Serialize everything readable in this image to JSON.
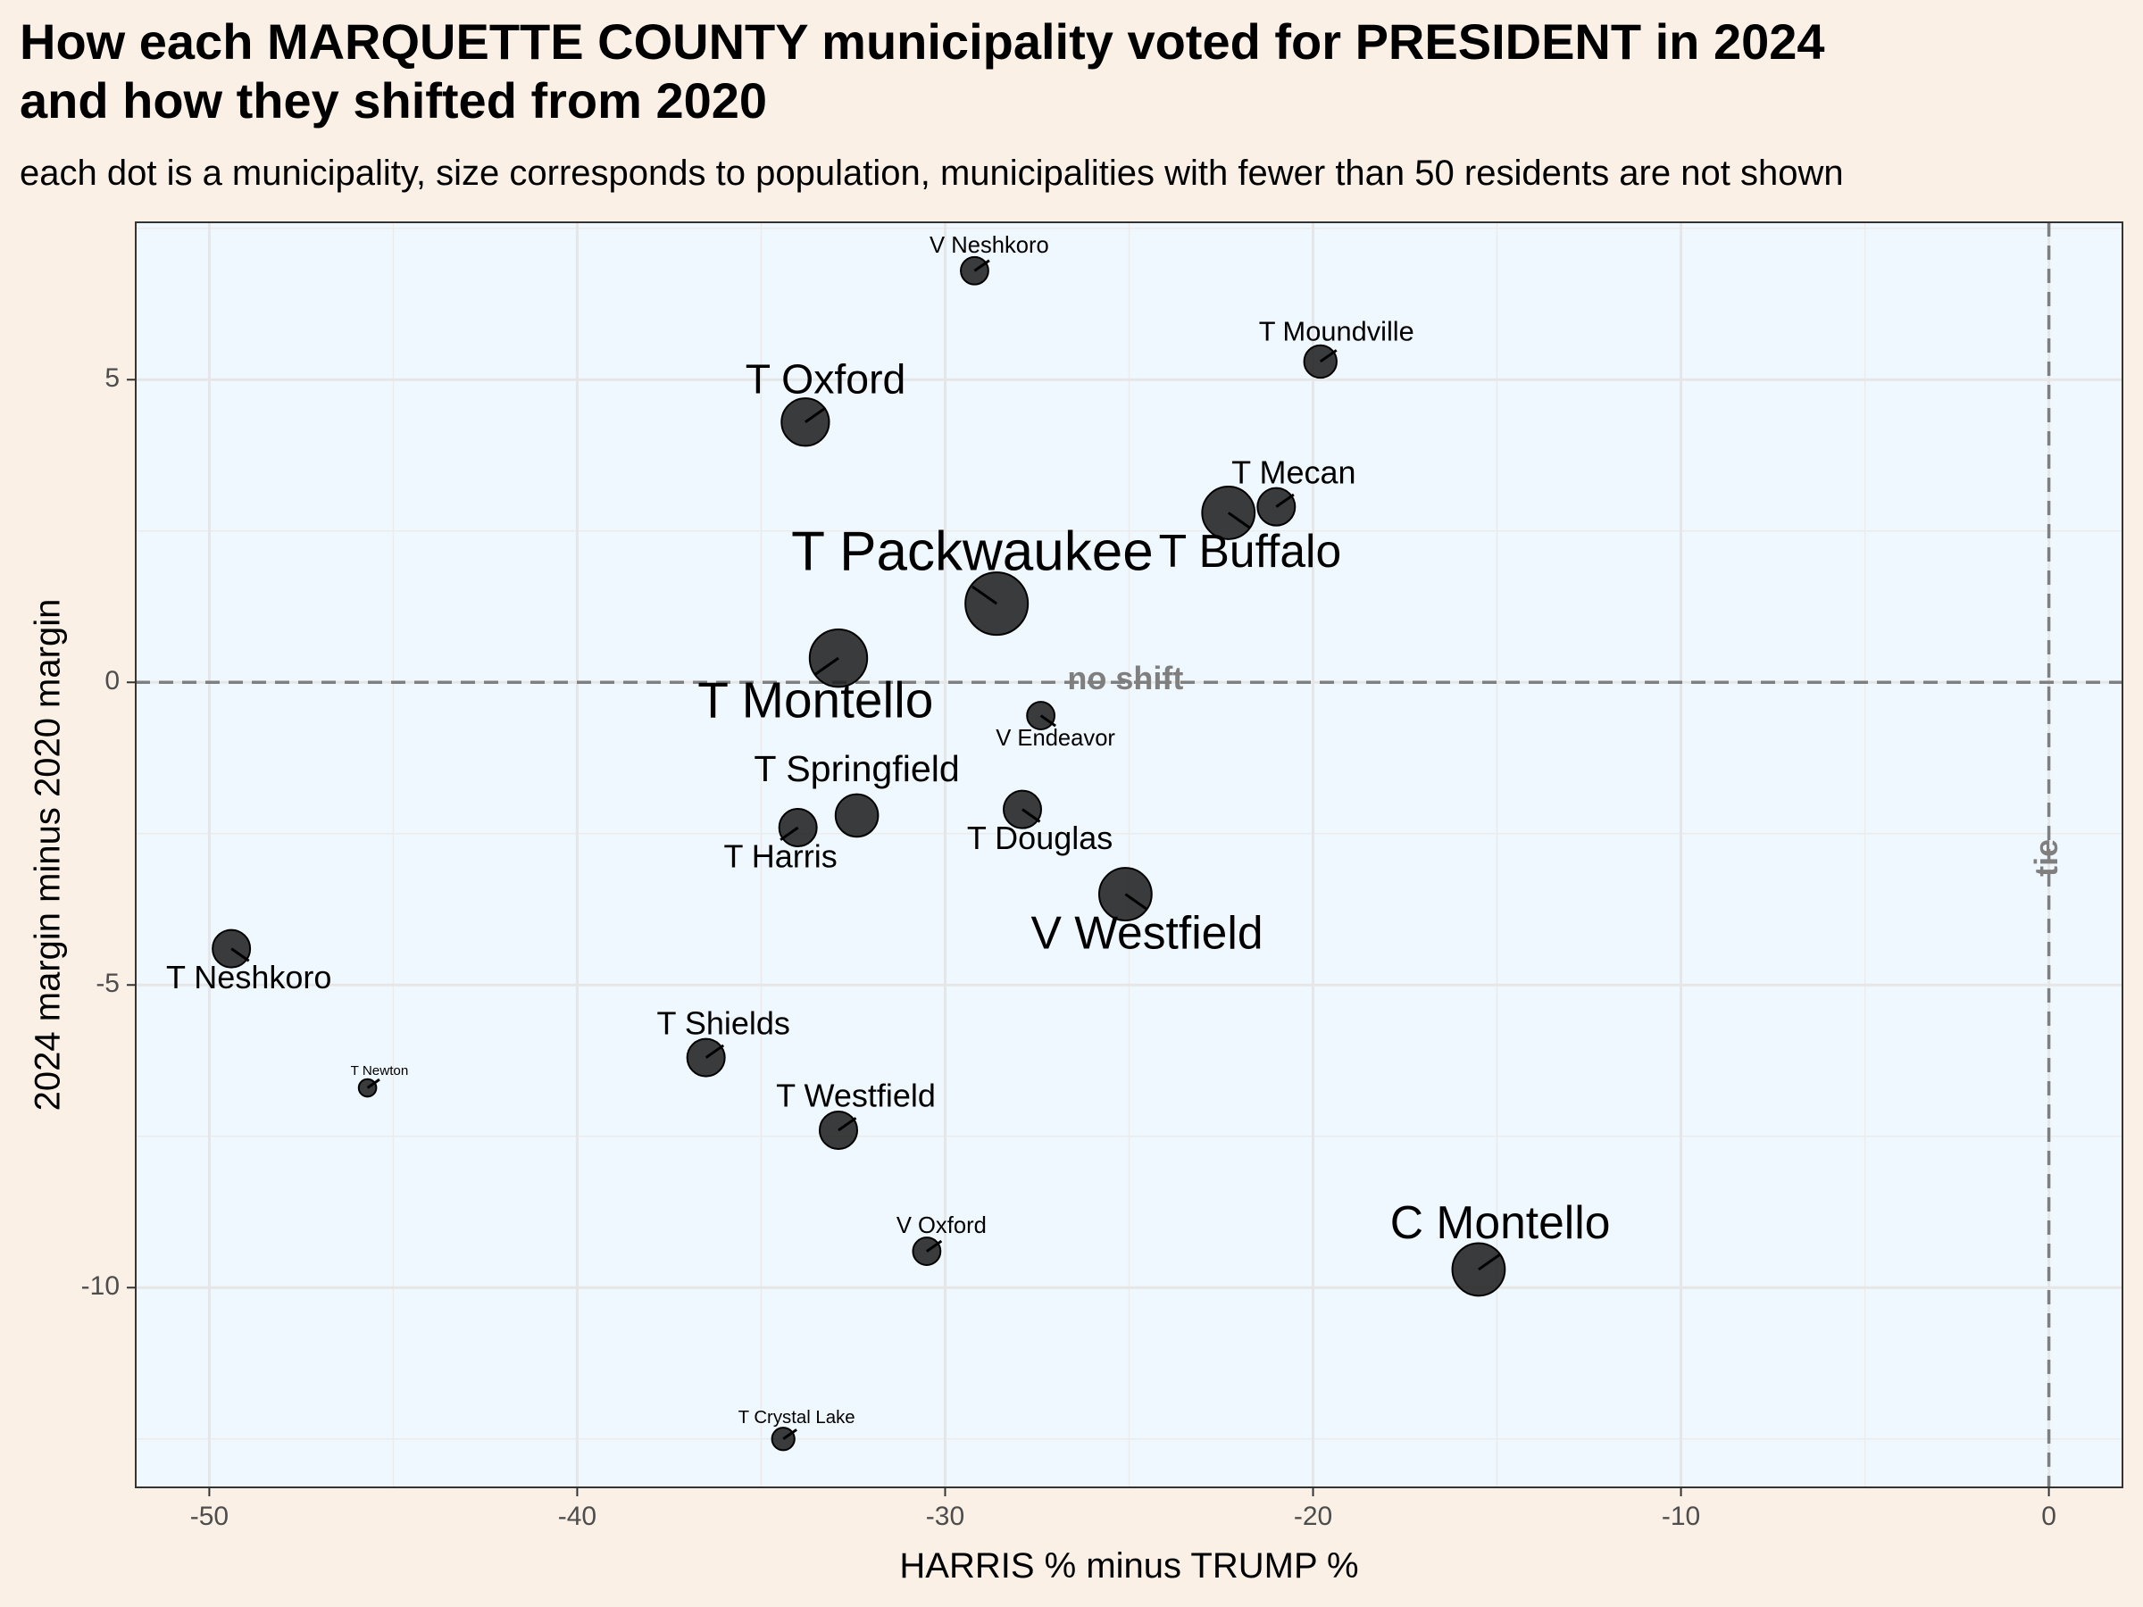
{
  "title_line1": "How each MARQUETTE COUNTY municipality voted for PRESIDENT in 2024",
  "title_line2": "and how they shifted from 2020",
  "subtitle": "each dot is a municipality, size corresponds to population, municipalities with fewer than 50 residents are not shown",
  "chart_data": {
    "type": "scatter",
    "xlabel": "HARRIS % minus TRUMP %",
    "ylabel": "2024 margin minus 2020 margin",
    "xlim": [
      -52,
      2
    ],
    "ylim": [
      -13.3,
      7.6
    ],
    "x_ticks": [
      -50,
      -40,
      -30,
      -20,
      -10,
      0
    ],
    "x_tick_labels": [
      "-50",
      "-40",
      "-30",
      "-20",
      "-10",
      "0"
    ],
    "y_ticks": [
      5,
      0,
      -5,
      -10
    ],
    "y_tick_labels": [
      "5",
      "0",
      "-5",
      "-10"
    ],
    "grid": true,
    "reference_lines": {
      "horizontal": {
        "y": 0,
        "label": "no shift"
      },
      "vertical": {
        "x": 0,
        "label": "tie"
      }
    },
    "colors": {
      "panel_background": "#f0f8ff",
      "page_background": "#faf0e6",
      "points": "#1a1a1a",
      "reference_lines": "#7f7f7f"
    },
    "points": [
      {
        "name": "V Neshkoro",
        "x": -29.2,
        "y": 6.8,
        "size": 3
      },
      {
        "name": "T Moundville",
        "x": -19.8,
        "y": 5.3,
        "size": 4
      },
      {
        "name": "T Oxford",
        "x": -33.8,
        "y": 4.3,
        "size": 7
      },
      {
        "name": "T Mecan",
        "x": -21.0,
        "y": 2.9,
        "size": 5
      },
      {
        "name": "T Buffalo",
        "x": -22.3,
        "y": 2.8,
        "size": 8
      },
      {
        "name": "T Packwaukee",
        "x": -28.6,
        "y": 1.3,
        "size": 10
      },
      {
        "name": "T Montello",
        "x": -32.9,
        "y": 0.4,
        "size": 9
      },
      {
        "name": "V Endeavor",
        "x": -27.4,
        "y": -0.55,
        "size": 3
      },
      {
        "name": "T Springfield",
        "x": -32.4,
        "y": -2.2,
        "size": 6
      },
      {
        "name": "T Douglas",
        "x": -27.9,
        "y": -2.1,
        "size": 5
      },
      {
        "name": "T Harris",
        "x": -34.0,
        "y": -2.4,
        "size": 5
      },
      {
        "name": "V Westfield",
        "x": -25.1,
        "y": -3.5,
        "size": 8
      },
      {
        "name": "T Neshkoro",
        "x": -49.4,
        "y": -4.4,
        "size": 5
      },
      {
        "name": "T Shields",
        "x": -36.5,
        "y": -6.2,
        "size": 5
      },
      {
        "name": "T Newton",
        "x": -45.7,
        "y": -6.7,
        "size": 1
      },
      {
        "name": "T Westfield",
        "x": -32.9,
        "y": -7.4,
        "size": 5
      },
      {
        "name": "V Oxford",
        "x": -30.5,
        "y": -9.4,
        "size": 3
      },
      {
        "name": "C Montello",
        "x": -15.5,
        "y": -9.7,
        "size": 8
      },
      {
        "name": "T Crystal Lake",
        "x": -34.4,
        "y": -12.5,
        "size": 2
      }
    ]
  }
}
